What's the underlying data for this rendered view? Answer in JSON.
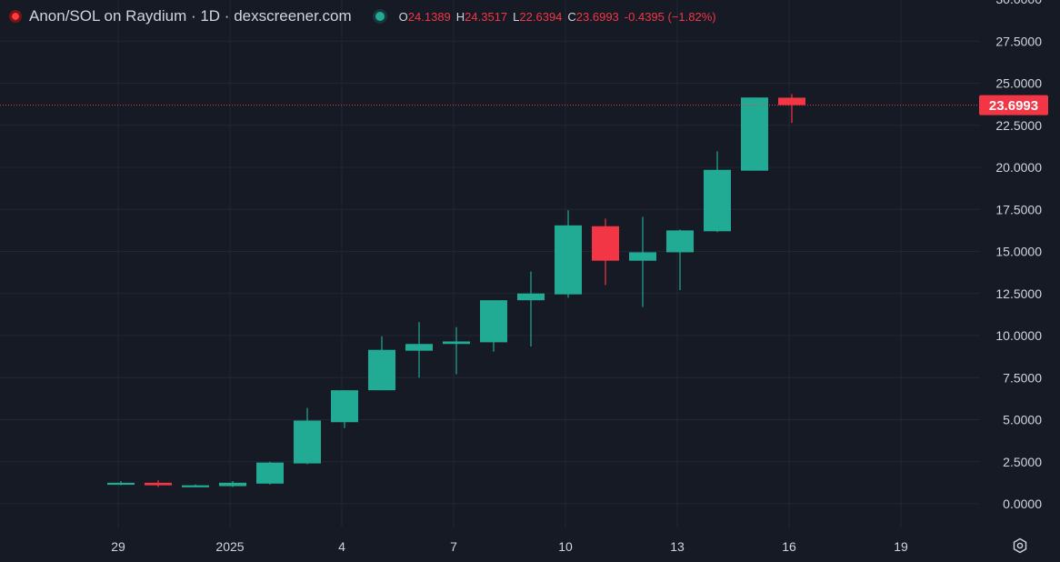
{
  "header": {
    "title": "Anon/SOL on Raydium · 1D · dexscreener.com",
    "ohlc": {
      "o_label": "O",
      "o_value": "24.1389",
      "h_label": "H",
      "h_value": "24.3517",
      "l_label": "L",
      "l_value": "22.6394",
      "c_label": "C",
      "c_value": "23.6993",
      "change": "-0.4395 (−1.82%)"
    }
  },
  "colors": {
    "background": "#161a25",
    "up": "#22ab94",
    "down": "#f23645",
    "grid": "#232734",
    "text": "#d1d4dc"
  },
  "icons": {
    "live": "live-status-icon",
    "status": "status-dot-icon",
    "settings": "settings-gear-icon"
  },
  "chart_data": {
    "type": "candlestick",
    "title": "Anon/SOL on Raydium · 1D · dexscreener.com",
    "x_labels": [
      "29",
      "2025",
      "4",
      "7",
      "10",
      "13",
      "16",
      "19"
    ],
    "x_label_days": [
      0,
      3,
      6,
      9,
      12,
      15,
      18,
      21
    ],
    "y_ticks": [
      "0.0000",
      "2.5000",
      "5.0000",
      "7.5000",
      "10.0000",
      "12.5000",
      "15.0000",
      "17.5000",
      "20.0000",
      "22.5000",
      "25.0000",
      "27.5000",
      "30.0000"
    ],
    "y_tick_values": [
      0,
      2.5,
      5,
      7.5,
      10,
      12.5,
      15,
      17.5,
      20,
      22.5,
      25,
      27.5,
      30
    ],
    "ylim": [
      -1.5,
      30.5
    ],
    "xlim_days": [
      -1.6,
      23.5
    ],
    "last_price": 23.6993,
    "last_price_label": "23.6993",
    "candles": [
      {
        "day": 0,
        "o": 1.2,
        "h": 1.35,
        "l": 1.1,
        "c": 1.25
      },
      {
        "day": 1,
        "o": 1.25,
        "h": 1.4,
        "l": 1.0,
        "c": 1.1
      },
      {
        "day": 2,
        "o": 1.05,
        "h": 1.15,
        "l": 1.0,
        "c": 1.1
      },
      {
        "day": 3,
        "o": 1.05,
        "h": 1.35,
        "l": 1.0,
        "c": 1.25
      },
      {
        "day": 4,
        "o": 1.2,
        "h": 2.5,
        "l": 1.15,
        "c": 2.45
      },
      {
        "day": 5,
        "o": 2.4,
        "h": 5.7,
        "l": 2.35,
        "c": 4.95
      },
      {
        "day": 6,
        "o": 4.85,
        "h": 6.75,
        "l": 4.5,
        "c": 6.75
      },
      {
        "day": 7,
        "o": 6.75,
        "h": 9.95,
        "l": 6.75,
        "c": 9.15
      },
      {
        "day": 8,
        "o": 9.1,
        "h": 10.8,
        "l": 7.5,
        "c": 9.5
      },
      {
        "day": 9,
        "o": 9.5,
        "h": 10.5,
        "l": 7.7,
        "c": 9.65
      },
      {
        "day": 10,
        "o": 9.6,
        "h": 12.1,
        "l": 9.05,
        "c": 12.1
      },
      {
        "day": 11,
        "o": 12.1,
        "h": 13.8,
        "l": 9.35,
        "c": 12.5
      },
      {
        "day": 12,
        "o": 12.45,
        "h": 17.45,
        "l": 12.25,
        "c": 16.55
      },
      {
        "day": 13,
        "o": 16.5,
        "h": 16.95,
        "l": 13.0,
        "c": 14.45
      },
      {
        "day": 14,
        "o": 14.45,
        "h": 17.05,
        "l": 11.7,
        "c": 14.95
      },
      {
        "day": 15,
        "o": 14.95,
        "h": 16.3,
        "l": 12.7,
        "c": 16.25
      },
      {
        "day": 16,
        "o": 16.2,
        "h": 20.95,
        "l": 16.15,
        "c": 19.85
      },
      {
        "day": 17,
        "o": 19.8,
        "h": 24.15,
        "l": 19.8,
        "c": 24.15
      },
      {
        "day": 18,
        "o": 24.1389,
        "h": 24.3517,
        "l": 22.6394,
        "c": 23.6993
      }
    ]
  }
}
